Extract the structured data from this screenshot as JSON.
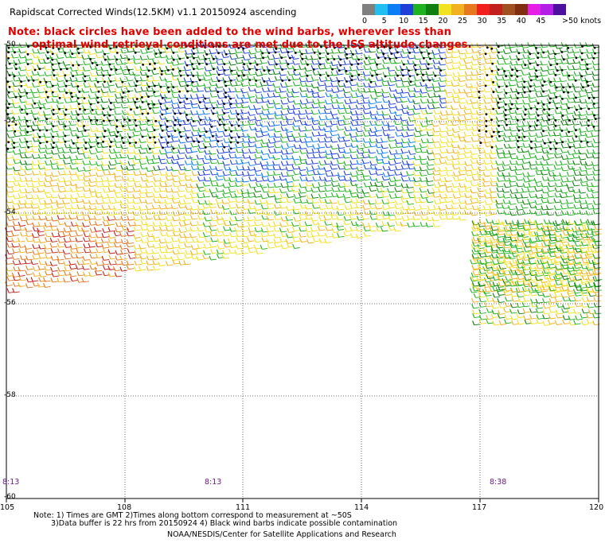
{
  "header": {
    "title": "Rapidscat Corrected Winds(12.5KM) v1.1 20150924 ascending",
    "note_line1": "Note: black circles have been added to the wind barbs, wherever less than",
    "note_line2": "optimal wind retrieval conditions are met due to the ISS altitude changes."
  },
  "legend": {
    "unit": ">50 knots",
    "colors": [
      "#7f7f7f",
      "#1fbff2",
      "#0a7ff5",
      "#1f3fd9",
      "#1fb41f",
      "#0f7f0f",
      "#f2e21f",
      "#f2b21f",
      "#e6781f",
      "#f21f1f",
      "#c21f1f",
      "#a1501f",
      "#7f2f0f",
      "#e61fe6",
      "#b21fe6",
      "#4c0f9f"
    ],
    "labels": [
      "0",
      "5",
      "10",
      "15",
      "20",
      "25",
      "30",
      "35",
      "40",
      "45"
    ]
  },
  "axes": {
    "x_labels": [
      "105",
      "108",
      "111",
      "114",
      "117",
      "120"
    ],
    "y_labels": [
      "-50",
      "-52",
      "-54",
      "-56",
      "-58",
      "-60"
    ]
  },
  "times": [
    "8:13",
    "8:13",
    "8:38"
  ],
  "footer": {
    "line1": "Note: 1) Times are GMT 2)Times along bottom correspond to measurement at ~50S",
    "line2": "3)Data buffer is 22 hrs from 20150924 4) Black wind barbs indicate possible contamination",
    "line3": "NOAA/NESDIS/Center for Satellite Applications and Research"
  }
}
